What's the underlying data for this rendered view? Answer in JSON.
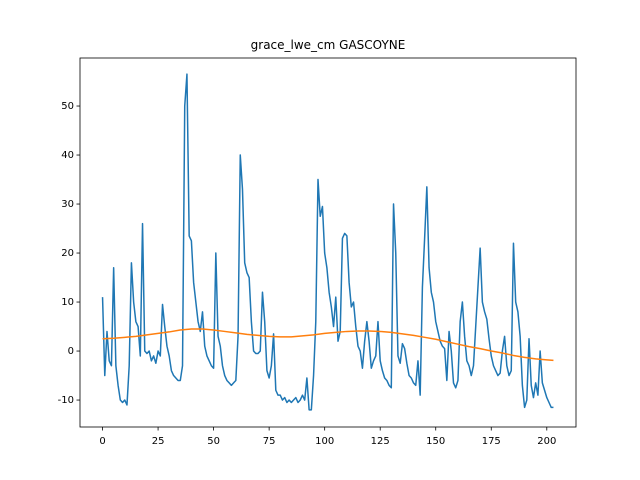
{
  "chart_data": {
    "type": "line",
    "title": "grace_lwe_cm GASCOYNE",
    "series": [
      {
        "color": "#1f77b4",
        "x": [
          0,
          1,
          2,
          3,
          4,
          5,
          6,
          7,
          8,
          9,
          10,
          11,
          12,
          13,
          14,
          15,
          16,
          17,
          18,
          19,
          20,
          21,
          22,
          23,
          24,
          25,
          26,
          27,
          28,
          29,
          30,
          31,
          32,
          33,
          34,
          35,
          36,
          37,
          38,
          39,
          40,
          41,
          42,
          43,
          44,
          45,
          46,
          47,
          48,
          49,
          50,
          51,
          52,
          53,
          54,
          55,
          56,
          57,
          58,
          59,
          60,
          61,
          62,
          63,
          64,
          65,
          66,
          67,
          68,
          69,
          70,
          71,
          72,
          73,
          74,
          75,
          76,
          77,
          78,
          79,
          80,
          81,
          82,
          83,
          84,
          85,
          86,
          87,
          88,
          89,
          90,
          91,
          92,
          93,
          94,
          95,
          96,
          97,
          98,
          99,
          100,
          101,
          102,
          103,
          104,
          105,
          106,
          107,
          108,
          109,
          110,
          111,
          112,
          113,
          114,
          115,
          116,
          117,
          118,
          119,
          120,
          121,
          122,
          123,
          124,
          125,
          126,
          127,
          128,
          129,
          130,
          131,
          132,
          133,
          134,
          135,
          136,
          137,
          138,
          139,
          140,
          141,
          142,
          143,
          144,
          145,
          146,
          147,
          148,
          149,
          150,
          151,
          152,
          153,
          154,
          155,
          156,
          157,
          158,
          159,
          160,
          161,
          162,
          163,
          164,
          165,
          166,
          167,
          168,
          169,
          170,
          171,
          172,
          173,
          174,
          175,
          176,
          177,
          178,
          179,
          180,
          181,
          182,
          183,
          184,
          185,
          186,
          187,
          188,
          189,
          190,
          191,
          192,
          193,
          194,
          195,
          196,
          197,
          198,
          199,
          200,
          201,
          202,
          203
        ],
        "values": [
          11,
          -5,
          4,
          -2,
          -3,
          17,
          -3,
          -7,
          -10,
          -10.5,
          -10,
          -11,
          -3,
          18,
          10,
          6,
          5,
          -1,
          26,
          0,
          -0.5,
          0,
          -2,
          -1,
          -2.5,
          0,
          -1,
          9.5,
          5,
          1,
          -1,
          -4,
          -5,
          -5.5,
          -6,
          -6,
          -3,
          50,
          56.5,
          23.5,
          22.5,
          14,
          10,
          6,
          4,
          8,
          1,
          -1,
          -2,
          -3,
          -3.5,
          20,
          3,
          1,
          -3,
          -5,
          -6,
          -6.5,
          -7,
          -6.5,
          -6,
          3,
          40,
          33,
          18,
          16,
          15,
          6,
          0,
          -0.5,
          -0.5,
          0,
          12,
          6,
          -4,
          -5.5,
          -3,
          3.5,
          -8,
          -9,
          -9,
          -10,
          -9.5,
          -10.5,
          -10,
          -10.5,
          -10,
          -9.5,
          -10.5,
          -10,
          -9,
          -10,
          -5.5,
          -12,
          -12,
          -5,
          6,
          35,
          27.5,
          29.5,
          20,
          17,
          12,
          9,
          5,
          11,
          2,
          4,
          23,
          24,
          23.5,
          14,
          9,
          10,
          5,
          1,
          0,
          -3.5,
          2,
          6,
          2,
          -3.5,
          -2,
          -1,
          6,
          -2,
          -4,
          -5.5,
          -6,
          -7,
          -7.5,
          30,
          20,
          -1,
          -2.5,
          1.5,
          0.5,
          -2.5,
          -5,
          -5.5,
          -6.5,
          -7,
          -2,
          -9,
          13,
          23,
          33.5,
          17,
          12,
          10,
          6,
          4,
          2,
          1,
          0.5,
          -6,
          4,
          0,
          -6.5,
          -7.5,
          -6,
          6,
          10,
          3,
          -2,
          -3,
          -5,
          -3,
          5,
          13,
          21,
          10,
          8,
          6.5,
          2.5,
          -1,
          -3,
          -4,
          -5,
          -4.5,
          0,
          3,
          -3,
          -5,
          -4,
          22,
          10,
          8,
          3,
          -7,
          -11.5,
          -10,
          2.5,
          -7,
          -9.5,
          -6.5,
          -9,
          0,
          -6.5,
          -8,
          -9.5,
          -10.5,
          -11.5,
          -11.5
        ]
      },
      {
        "color": "#ff7f0e",
        "x": [
          0,
          5,
          10,
          15,
          20,
          25,
          30,
          35,
          40,
          45,
          50,
          55,
          60,
          65,
          70,
          75,
          80,
          85,
          90,
          95,
          100,
          105,
          110,
          115,
          120,
          125,
          130,
          135,
          140,
          145,
          150,
          155,
          160,
          165,
          170,
          175,
          180,
          185,
          190,
          195,
          200,
          203
        ],
        "values": [
          2.5,
          2.6,
          2.8,
          3.0,
          3.3,
          3.6,
          3.9,
          4.3,
          4.5,
          4.5,
          4.3,
          4.0,
          3.7,
          3.4,
          3.2,
          3.0,
          2.9,
          2.9,
          3.1,
          3.3,
          3.6,
          3.8,
          4.0,
          4.1,
          4.1,
          4.0,
          3.8,
          3.5,
          3.2,
          2.8,
          2.4,
          1.9,
          1.4,
          0.9,
          0.5,
          0,
          -0.4,
          -0.9,
          -1.3,
          -1.6,
          -1.8,
          -1.9
        ]
      }
    ],
    "xlim": [
      -10.15,
      213.15
    ],
    "ylim": [
      -15.5,
      59.8
    ],
    "xticks": [
      0,
      25,
      50,
      75,
      100,
      125,
      150,
      175,
      200
    ],
    "yticks": [
      -10,
      0,
      10,
      20,
      30,
      40,
      50
    ],
    "grid": false
  }
}
